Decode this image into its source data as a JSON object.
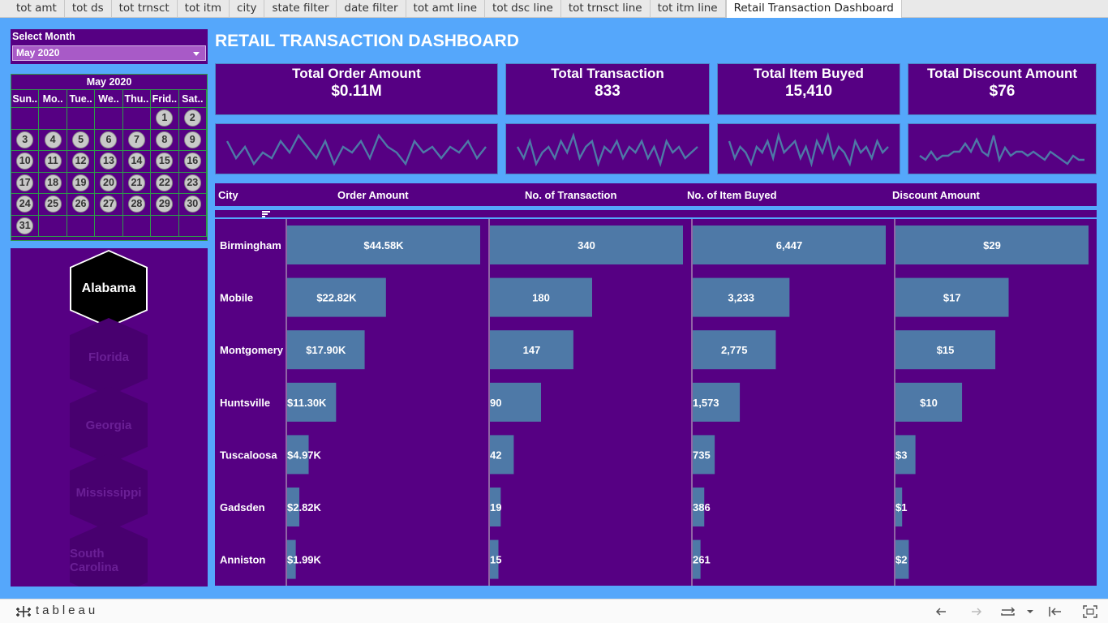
{
  "tabs": [
    {
      "label": "tot amt"
    },
    {
      "label": "tot ds"
    },
    {
      "label": "tot trnsct"
    },
    {
      "label": "tot itm"
    },
    {
      "label": "city"
    },
    {
      "label": "state filter"
    },
    {
      "label": "date filter"
    },
    {
      "label": "tot amt line"
    },
    {
      "label": "tot dsc line"
    },
    {
      "label": "tot trnsct line"
    },
    {
      "label": "tot itm line"
    },
    {
      "label": "Retail Transaction Dashboard",
      "active": true
    }
  ],
  "filter": {
    "label": "Select Month",
    "value": "May 2020"
  },
  "calendar": {
    "title": "May 2020",
    "weekdays": [
      "Sun..",
      "Mo..",
      "Tue..",
      "We..",
      "Thu..",
      "Frid..",
      "Sat.."
    ],
    "first_weekday_index": 5,
    "days": 31
  },
  "states": [
    "Alabama",
    "Florida",
    "Georgia",
    "Mississippi",
    "South Carolina"
  ],
  "selected_state": "Alabama",
  "dashboard_title": "RETAIL TRANSACTION DASHBOARD",
  "kpis": [
    {
      "label": "Total Order Amount",
      "value": "$0.11M"
    },
    {
      "label": "Total Transaction",
      "value": "833"
    },
    {
      "label": "Total Item Buyed",
      "value": "15,410"
    },
    {
      "label": "Total Discount Amount",
      "value": "$76"
    }
  ],
  "colors": {
    "panel": "#560083",
    "background": "#55a7fb",
    "bar": "#4e79a7",
    "spark": "#4e79a7"
  },
  "chart_data": {
    "type": "bar",
    "orientation": "horizontal",
    "city_header": "City",
    "categories": [
      "Birmingham",
      "Mobile",
      "Montgomery",
      "Huntsville",
      "Tuscaloosa",
      "Gadsden",
      "Anniston"
    ],
    "series": [
      {
        "name": "Order Amount",
        "values": [
          44580,
          22820,
          17900,
          11300,
          4970,
          2820,
          1990
        ],
        "labels": [
          "$44.58K",
          "$22.82K",
          "$17.90K",
          "$11.30K",
          "$4.97K",
          "$2.82K",
          "$1.99K"
        ]
      },
      {
        "name": "No. of Transaction",
        "values": [
          340,
          180,
          147,
          90,
          42,
          19,
          15
        ],
        "labels": [
          "340",
          "180",
          "147",
          "90",
          "42",
          "19",
          "15"
        ]
      },
      {
        "name": "No. of Item Buyed",
        "values": [
          6447,
          3233,
          2775,
          1573,
          735,
          386,
          261
        ],
        "labels": [
          "6,447",
          "3,233",
          "2,775",
          "1,573",
          "735",
          "386",
          "261"
        ]
      },
      {
        "name": "Discount Amount",
        "values": [
          29,
          17,
          15,
          10,
          3,
          1,
          2
        ],
        "labels": [
          "$29",
          "$17",
          "$15",
          "$10",
          "$3",
          "$1",
          "$2"
        ]
      }
    ]
  },
  "sparklines": [
    {
      "type": "line",
      "values": [
        7,
        4,
        6,
        3,
        5,
        4,
        7,
        5,
        8,
        6,
        4,
        7,
        3,
        6,
        5,
        7,
        4,
        8,
        6,
        5,
        3,
        7,
        5,
        6,
        4,
        6,
        5,
        7,
        4,
        6
      ]
    },
    {
      "type": "line",
      "values": [
        6,
        4,
        7,
        3,
        5,
        6,
        4,
        7,
        5,
        8,
        4,
        6,
        7,
        3,
        6,
        5,
        7,
        4,
        6,
        5,
        7,
        4,
        6,
        3,
        7,
        5,
        6,
        4,
        5,
        6
      ]
    },
    {
      "type": "line",
      "values": [
        7,
        4,
        6,
        5,
        3,
        6,
        5,
        7,
        4,
        8,
        5,
        6,
        7,
        4,
        6,
        3,
        7,
        5,
        8,
        4,
        6,
        5,
        3,
        7,
        5,
        6,
        4,
        7,
        5,
        6
      ]
    },
    {
      "type": "line",
      "values": [
        3,
        2,
        4,
        2,
        3,
        3,
        4,
        4,
        6,
        4,
        7,
        4,
        3,
        8,
        2,
        5,
        3,
        4,
        4,
        3,
        4,
        3,
        2,
        4,
        3,
        2,
        1,
        3,
        2,
        2
      ]
    }
  ],
  "footer": {
    "brand": "tableau"
  }
}
